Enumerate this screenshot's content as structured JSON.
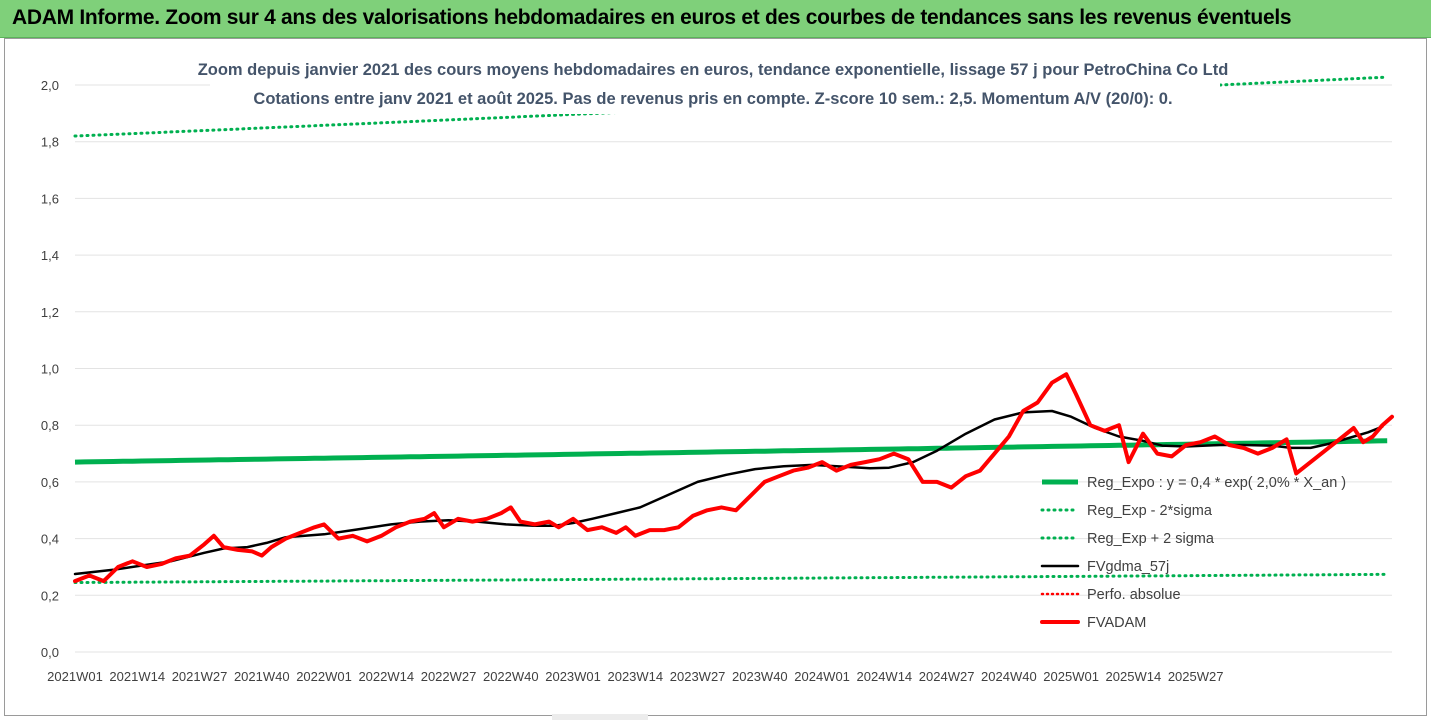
{
  "header": {
    "title": "ADAM Informe. Zoom sur 4 ans des valorisations hebdomadaires en euros et des courbes de tendances sans les revenus éventuels"
  },
  "colors": {
    "header_bg": "#7fd07a",
    "reg_expo": "#00b050",
    "fvgdma": "#000000",
    "fvadam": "#ff0000",
    "perfo": "#ff0000"
  },
  "chart_data": {
    "type": "line",
    "title": "Zoom depuis janvier 2021 des cours moyens hebdomadaires en euros, tendance exponentielle, lissage 57 j pour PetroChina Co Ltd",
    "subtitle": "Cotations entre janv 2021 et août 2025.  Pas de revenus pris en compte. Z-score 10 sem.: 2,5. Momentum A/V (20/0): 0.",
    "xlabel": "",
    "ylabel": "",
    "ylim": [
      0,
      2
    ],
    "y_ticks": [
      "0,0",
      "0,2",
      "0,4",
      "0,6",
      "0,8",
      "1,0",
      "1,2",
      "1,4",
      "1,6",
      "1,8",
      "2,0"
    ],
    "x_ticks": [
      "2021W01",
      "2021W14",
      "2021W27",
      "2021W40",
      "2022W01",
      "2022W14",
      "2022W27",
      "2022W40",
      "2023W01",
      "2023W14",
      "2023W27",
      "2023W40",
      "2024W01",
      "2024W14",
      "2024W27",
      "2024W40",
      "2025W01",
      "2025W14",
      "2025W27"
    ],
    "grid": "horizontal",
    "legend_position": "right",
    "x_range_weeks": [
      0,
      239
    ],
    "series": [
      {
        "name": "Reg_Expo : y = 0,4 * exp( 2,0% * X_an )",
        "style": "solid",
        "points": [
          [
            0,
            0.67
          ],
          [
            239,
            0.735
          ]
        ]
      },
      {
        "name": "Reg_Exp - 2*sigma",
        "style": "dotted",
        "points": [
          [
            0,
            0.245
          ],
          [
            239,
            0.27
          ]
        ]
      },
      {
        "name": "Reg_Exp + 2 sigma",
        "style": "dotted",
        "points": [
          [
            0,
            1.82
          ],
          [
            239,
            2.0
          ]
        ]
      },
      {
        "name": "FVgdma_57j",
        "style": "solid",
        "points": [
          [
            0,
            0.275
          ],
          [
            8,
            0.29
          ],
          [
            14,
            0.305
          ],
          [
            20,
            0.32
          ],
          [
            27,
            0.35
          ],
          [
            31,
            0.365
          ],
          [
            36,
            0.37
          ],
          [
            40,
            0.385
          ],
          [
            44,
            0.405
          ],
          [
            52,
            0.415
          ],
          [
            58,
            0.43
          ],
          [
            66,
            0.45
          ],
          [
            72,
            0.46
          ],
          [
            78,
            0.465
          ],
          [
            84,
            0.46
          ],
          [
            90,
            0.45
          ],
          [
            96,
            0.445
          ],
          [
            100,
            0.445
          ],
          [
            104,
            0.455
          ],
          [
            108,
            0.47
          ],
          [
            113,
            0.49
          ],
          [
            118,
            0.51
          ],
          [
            122,
            0.54
          ],
          [
            126,
            0.57
          ],
          [
            130,
            0.6
          ],
          [
            136,
            0.625
          ],
          [
            142,
            0.645
          ],
          [
            148,
            0.655
          ],
          [
            154,
            0.66
          ],
          [
            159,
            0.655
          ],
          [
            166,
            0.648
          ],
          [
            170,
            0.65
          ],
          [
            175,
            0.67
          ],
          [
            180,
            0.71
          ],
          [
            186,
            0.77
          ],
          [
            192,
            0.82
          ],
          [
            198,
            0.845
          ],
          [
            204,
            0.85
          ],
          [
            208,
            0.83
          ],
          [
            213,
            0.79
          ],
          [
            218,
            0.76
          ],
          [
            223,
            0.745
          ],
          [
            227,
            0.728
          ],
          [
            232,
            0.725
          ],
          [
            236,
            0.728
          ],
          [
            239,
            0.73
          ],
          [
            244,
            0.73
          ],
          [
            250,
            0.728
          ],
          [
            254,
            0.72
          ],
          [
            258,
            0.72
          ],
          [
            262,
            0.735
          ],
          [
            266,
            0.755
          ],
          [
            270,
            0.775
          ],
          [
            273,
            0.795
          ]
        ]
      },
      {
        "name": "Perfo. absolue",
        "style": "dotted",
        "points": []
      },
      {
        "name": "FVADAM",
        "style": "solid",
        "points": [
          [
            0,
            0.25
          ],
          [
            3,
            0.27
          ],
          [
            6,
            0.25
          ],
          [
            9,
            0.3
          ],
          [
            12,
            0.32
          ],
          [
            15,
            0.3
          ],
          [
            18,
            0.31
          ],
          [
            21,
            0.33
          ],
          [
            24,
            0.34
          ],
          [
            27,
            0.38
          ],
          [
            29,
            0.41
          ],
          [
            31,
            0.37
          ],
          [
            34,
            0.36
          ],
          [
            37,
            0.355
          ],
          [
            39,
            0.34
          ],
          [
            41,
            0.37
          ],
          [
            44,
            0.4
          ],
          [
            47,
            0.42
          ],
          [
            50,
            0.44
          ],
          [
            52,
            0.45
          ],
          [
            55,
            0.4
          ],
          [
            58,
            0.41
          ],
          [
            61,
            0.39
          ],
          [
            64,
            0.41
          ],
          [
            67,
            0.44
          ],
          [
            70,
            0.46
          ],
          [
            73,
            0.47
          ],
          [
            75,
            0.49
          ],
          [
            77,
            0.44
          ],
          [
            80,
            0.47
          ],
          [
            83,
            0.46
          ],
          [
            86,
            0.47
          ],
          [
            89,
            0.49
          ],
          [
            91,
            0.51
          ],
          [
            93,
            0.46
          ],
          [
            96,
            0.45
          ],
          [
            99,
            0.46
          ],
          [
            101,
            0.44
          ],
          [
            104,
            0.47
          ],
          [
            107,
            0.43
          ],
          [
            110,
            0.44
          ],
          [
            113,
            0.42
          ],
          [
            115,
            0.44
          ],
          [
            117,
            0.41
          ],
          [
            120,
            0.43
          ],
          [
            123,
            0.43
          ],
          [
            126,
            0.44
          ],
          [
            129,
            0.48
          ],
          [
            132,
            0.5
          ],
          [
            135,
            0.51
          ],
          [
            138,
            0.5
          ],
          [
            141,
            0.55
          ],
          [
            144,
            0.6
          ],
          [
            147,
            0.62
          ],
          [
            150,
            0.64
          ],
          [
            153,
            0.65
          ],
          [
            156,
            0.67
          ],
          [
            159,
            0.64
          ],
          [
            162,
            0.66
          ],
          [
            165,
            0.67
          ],
          [
            168,
            0.68
          ],
          [
            171,
            0.7
          ],
          [
            174,
            0.68
          ],
          [
            177,
            0.6
          ],
          [
            180,
            0.6
          ],
          [
            183,
            0.58
          ],
          [
            186,
            0.62
          ],
          [
            189,
            0.64
          ],
          [
            192,
            0.7
          ],
          [
            195,
            0.76
          ],
          [
            198,
            0.85
          ],
          [
            201,
            0.88
          ],
          [
            204,
            0.95
          ],
          [
            207,
            0.98
          ],
          [
            209,
            0.91
          ],
          [
            212,
            0.8
          ],
          [
            215,
            0.78
          ],
          [
            218,
            0.8
          ],
          [
            220,
            0.67
          ],
          [
            223,
            0.77
          ],
          [
            226,
            0.7
          ],
          [
            229,
            0.69
          ],
          [
            232,
            0.73
          ],
          [
            235,
            0.74
          ],
          [
            238,
            0.76
          ],
          [
            241,
            0.73
          ],
          [
            244,
            0.72
          ],
          [
            247,
            0.7
          ],
          [
            250,
            0.72
          ],
          [
            253,
            0.75
          ],
          [
            255,
            0.63
          ],
          [
            258,
            0.67
          ],
          [
            261,
            0.71
          ],
          [
            264,
            0.75
          ],
          [
            267,
            0.79
          ],
          [
            269,
            0.74
          ],
          [
            271,
            0.76
          ],
          [
            273,
            0.8
          ],
          [
            275,
            0.83
          ]
        ]
      }
    ]
  }
}
